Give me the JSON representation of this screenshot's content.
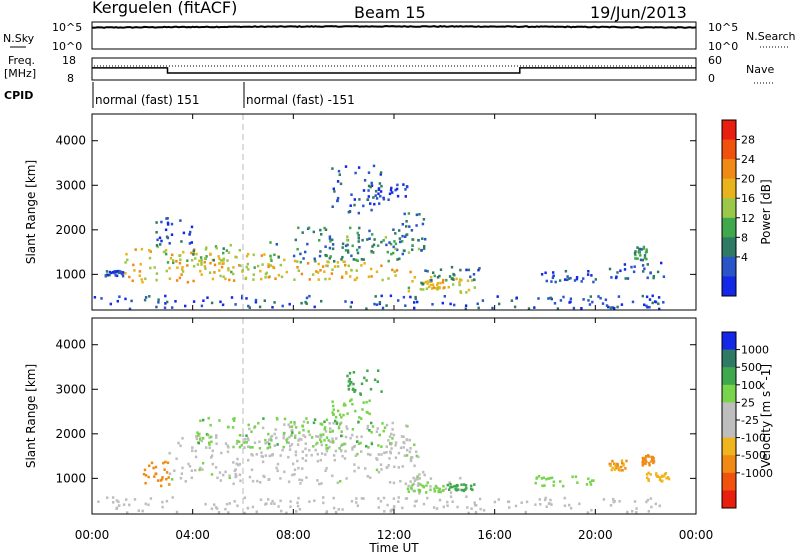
{
  "header": {
    "title": "Kerguelen (fitACF)",
    "beam": "Beam 15",
    "date": "19/Jun/2013"
  },
  "top_panels": {
    "nsky_label": "N.Sky",
    "nsky_ticks": [
      "10^5",
      "10^0"
    ],
    "nsearch_label": "N.Search",
    "nsearch_ticks": [
      "10^5",
      "10^0"
    ],
    "freq_label": "Freq.",
    "freq_unit": "[MHz]",
    "freq_ticks": [
      "18",
      "8"
    ],
    "nave_label": "Nave",
    "nave_ticks": [
      "60",
      "0"
    ],
    "cpid_label": "CPID",
    "cpid_entries": [
      {
        "start": 0,
        "end": 6,
        "label": "normal (fast) 151"
      },
      {
        "start": 6,
        "end": 24,
        "label": "normal (fast) -151"
      }
    ],
    "freq_profile": [
      [
        0,
        13.5
      ],
      [
        3,
        13.5
      ],
      [
        3,
        11.2
      ],
      [
        17,
        11.2
      ],
      [
        17,
        13.5
      ],
      [
        24,
        13.5
      ]
    ]
  },
  "x_axis": {
    "label": "Time UT",
    "ticks": [
      "00:00",
      "04:00",
      "08:00",
      "12:00",
      "16:00",
      "20:00",
      "00:00"
    ],
    "range": [
      0,
      24
    ]
  },
  "chart_data": [
    {
      "type": "heatmap",
      "name": "power",
      "ylabel": "Slant Range [km]",
      "ylim": [
        200,
        4600
      ],
      "yticks": [
        1000,
        2000,
        3000,
        4000
      ],
      "colorbar_label": "Power [dB]",
      "colorbar_ticks": [
        "4",
        "8",
        "12",
        "16",
        "20",
        "24",
        "28"
      ],
      "colorbar_colors": [
        "#1428e8",
        "#2a55c8",
        "#2e7a64",
        "#3fa74c",
        "#9cc84a",
        "#e8b31c",
        "#f08a14",
        "#f0520e",
        "#e81e0e"
      ],
      "blobs": [
        {
          "t": [
            1.2,
            6
          ],
          "r": [
            850,
            1600
          ],
          "v": 22
        },
        {
          "t": [
            2.5,
            5.5
          ],
          "r": [
            1200,
            1700
          ],
          "v": 15
        },
        {
          "t": [
            4,
            8
          ],
          "r": [
            950,
            1500
          ],
          "v": 20
        },
        {
          "t": [
            6,
            11
          ],
          "r": [
            900,
            1350
          ],
          "v": 22
        },
        {
          "t": [
            7,
            12.5
          ],
          "r": [
            1300,
            2100
          ],
          "v": 10
        },
        {
          "t": [
            9,
            13
          ],
          "r": [
            900,
            1250
          ],
          "v": 22
        },
        {
          "t": [
            10,
            13
          ],
          "r": [
            1500,
            1900
          ],
          "v": 14
        },
        {
          "t": [
            12.3,
            13.2
          ],
          "r": [
            1500,
            2400
          ],
          "v": 9
        },
        {
          "t": [
            12.5,
            15.2
          ],
          "r": [
            600,
            1000
          ],
          "v": 19
        },
        {
          "t": [
            13,
            14
          ],
          "r": [
            650,
            900
          ],
          "v": 22
        },
        {
          "t": [
            2.5,
            4
          ],
          "r": [
            1700,
            2300
          ],
          "v": 5
        },
        {
          "t": [
            9.5,
            11.5
          ],
          "r": [
            2400,
            3500
          ],
          "v": 5
        },
        {
          "t": [
            11,
            12.5
          ],
          "r": [
            2700,
            3100
          ],
          "v": 5
        },
        {
          "t": [
            13,
            15.5
          ],
          "r": [
            800,
            1200
          ],
          "v": 8
        },
        {
          "t": [
            17.8,
            20
          ],
          "r": [
            850,
            1100
          ],
          "v": 5
        },
        {
          "t": [
            20.5,
            23
          ],
          "r": [
            900,
            1300
          ],
          "v": 6
        },
        {
          "t": [
            21.5,
            22
          ],
          "r": [
            1350,
            1650
          ],
          "v": 12
        },
        {
          "t": [
            0.5,
            1.2
          ],
          "r": [
            980,
            1100
          ],
          "v": 6
        },
        {
          "t": [
            0,
            23
          ],
          "r": [
            250,
            550
          ],
          "v": 5
        }
      ]
    },
    {
      "type": "heatmap",
      "name": "velocity",
      "ylabel": "Slant Range [km]",
      "ylim": [
        200,
        4600
      ],
      "yticks": [
        1000,
        2000,
        3000,
        4000
      ],
      "colorbar_label": "Velocity [m s^-1]",
      "colorbar_ticks": [
        "1000",
        "500",
        "100",
        "25",
        "-25",
        "-100",
        "-500",
        "-1000"
      ],
      "colorbar_colors": [
        "#1428e8",
        "#2e7a64",
        "#3fa74c",
        "#78d44a",
        "#bebebe",
        "#bebebe",
        "#f0b41e",
        "#f08a14",
        "#f0520e",
        "#e81e0e"
      ],
      "blobs": [
        {
          "t": [
            2,
            3.1
          ],
          "r": [
            850,
            1400
          ],
          "v": -300
        },
        {
          "t": [
            3,
            13.2
          ],
          "r": [
            900,
            2000
          ],
          "v": 0
        },
        {
          "t": [
            6,
            12.5
          ],
          "r": [
            1500,
            2300
          ],
          "v": 0
        },
        {
          "t": [
            12.5,
            15
          ],
          "r": [
            600,
            1050
          ],
          "v": 0
        },
        {
          "t": [
            14,
            15.2
          ],
          "r": [
            750,
            900
          ],
          "v": 150
        },
        {
          "t": [
            10,
            11.5
          ],
          "r": [
            2900,
            3500
          ],
          "v": 200
        },
        {
          "t": [
            9.5,
            11
          ],
          "r": [
            2400,
            2800
          ],
          "v": 60
        },
        {
          "t": [
            4,
            12
          ],
          "r": [
            1700,
            2400
          ],
          "v": 80
        },
        {
          "t": [
            12.5,
            14
          ],
          "r": [
            700,
            900
          ],
          "v": 60
        },
        {
          "t": [
            20.5,
            21.2
          ],
          "r": [
            1200,
            1450
          ],
          "v": -250
        },
        {
          "t": [
            21.8,
            22.3
          ],
          "r": [
            1300,
            1550
          ],
          "v": -300
        },
        {
          "t": [
            22,
            23
          ],
          "r": [
            950,
            1150
          ],
          "v": -150
        },
        {
          "t": [
            17.5,
            20
          ],
          "r": [
            850,
            1100
          ],
          "v": 60
        },
        {
          "t": [
            0,
            23
          ],
          "r": [
            250,
            600
          ],
          "v": -60
        }
      ]
    }
  ]
}
